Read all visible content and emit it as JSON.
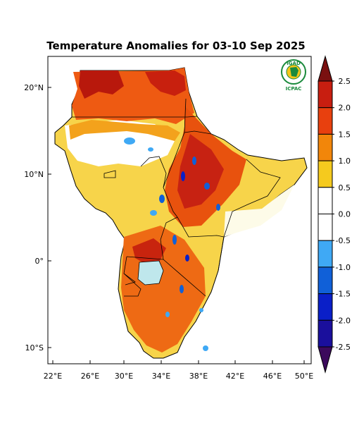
{
  "title": "Temperature Anomalies for 03-10 Sep 2025",
  "logo": {
    "top_text": "IGAD",
    "bottom_text": "ICPAC",
    "ring_text": "Climate Prediction & Application Centre"
  },
  "map": {
    "lon_ticks": [
      "22°E",
      "26°E",
      "30°E",
      "34°E",
      "38°E",
      "42°E",
      "46°E",
      "50°E"
    ],
    "lat_ticks": [
      "20°N",
      "10°N",
      "0°",
      "10°S"
    ]
  },
  "colorbar": {
    "labels": [
      "2.5",
      "2.0",
      "1.5",
      "1.0",
      "0.5",
      "0.0",
      "-0.5",
      "-1.0",
      "-1.5",
      "-2.0",
      "-2.5"
    ],
    "colors": [
      "#7a1010",
      "#c81e10",
      "#e8400e",
      "#f2860a",
      "#f5ca1e",
      "#ffffff",
      "#ffffff",
      "#3fa9f5",
      "#1060d8",
      "#0a1fc8",
      "#1a0f9c",
      "#3c0a5c"
    ]
  }
}
